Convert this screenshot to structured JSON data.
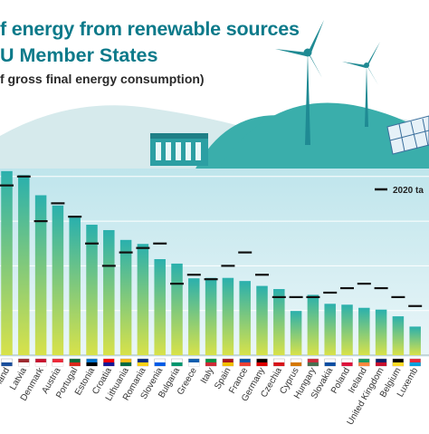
{
  "header": {
    "title_line1": "f energy from renewable sources",
    "title_line2": "U Member States",
    "subtitle": "f gross final energy consumption)"
  },
  "legend": {
    "target_label": "2020 ta"
  },
  "colors": {
    "title": "#0c7a8a",
    "bar_top": "#2ab0ad",
    "bar_bottom": "#d8e24a",
    "target_marker": "#111111",
    "plot_bg_top": "#bfe5ec",
    "plot_bg_bottom": "#eaf6f8",
    "hill": "#d6eaec",
    "hill_teal": "#3aaeab"
  },
  "chart_data": {
    "type": "bar",
    "categories": [
      "land",
      "Latvia",
      "Denmark",
      "Austria",
      "Portugal",
      "Estonia",
      "Croatia",
      "Lithuania",
      "Romania",
      "Slovenia",
      "Bulgaria",
      "Greece",
      "Italy",
      "Spain",
      "France",
      "Germany",
      "Czechia",
      "Cyprus",
      "Hungary",
      "Slovakia",
      "Poland",
      "Ireland",
      "United Kingdom",
      "Belgium",
      "Luxemb"
    ],
    "flags": [
      "FI",
      "LV",
      "DK",
      "AT",
      "PT",
      "EE",
      "HR",
      "LT",
      "RO",
      "SI",
      "BG",
      "GR",
      "IT",
      "ES",
      "FR",
      "DE",
      "CZ",
      "CY",
      "HU",
      "SK",
      "PL",
      "IE",
      "GB",
      "BE",
      "LU"
    ],
    "series": [
      {
        "values": [
          41.2,
          40.3,
          35.8,
          33.5,
          30.8,
          29.2,
          28.0,
          25.8,
          24.9,
          21.5,
          20.5,
          17.2,
          17.3,
          17.3,
          16.6,
          15.5,
          14.8,
          9.9,
          13.5,
          11.5,
          11.3,
          10.6,
          10.2,
          8.7,
          6.4
        ]
      }
    ],
    "targets": [
      38.0,
      40.0,
      30.0,
      34.0,
      31.0,
      25.0,
      20.0,
      23.0,
      24.0,
      25.0,
      16.0,
      18.0,
      17.0,
      20.0,
      23.0,
      18.0,
      13.0,
      13.0,
      13.0,
      14.0,
      15.0,
      16.0,
      15.0,
      13.0,
      11.0
    ],
    "ylim": [
      0,
      43
    ],
    "grid": true,
    "legend_position": "top-right"
  }
}
